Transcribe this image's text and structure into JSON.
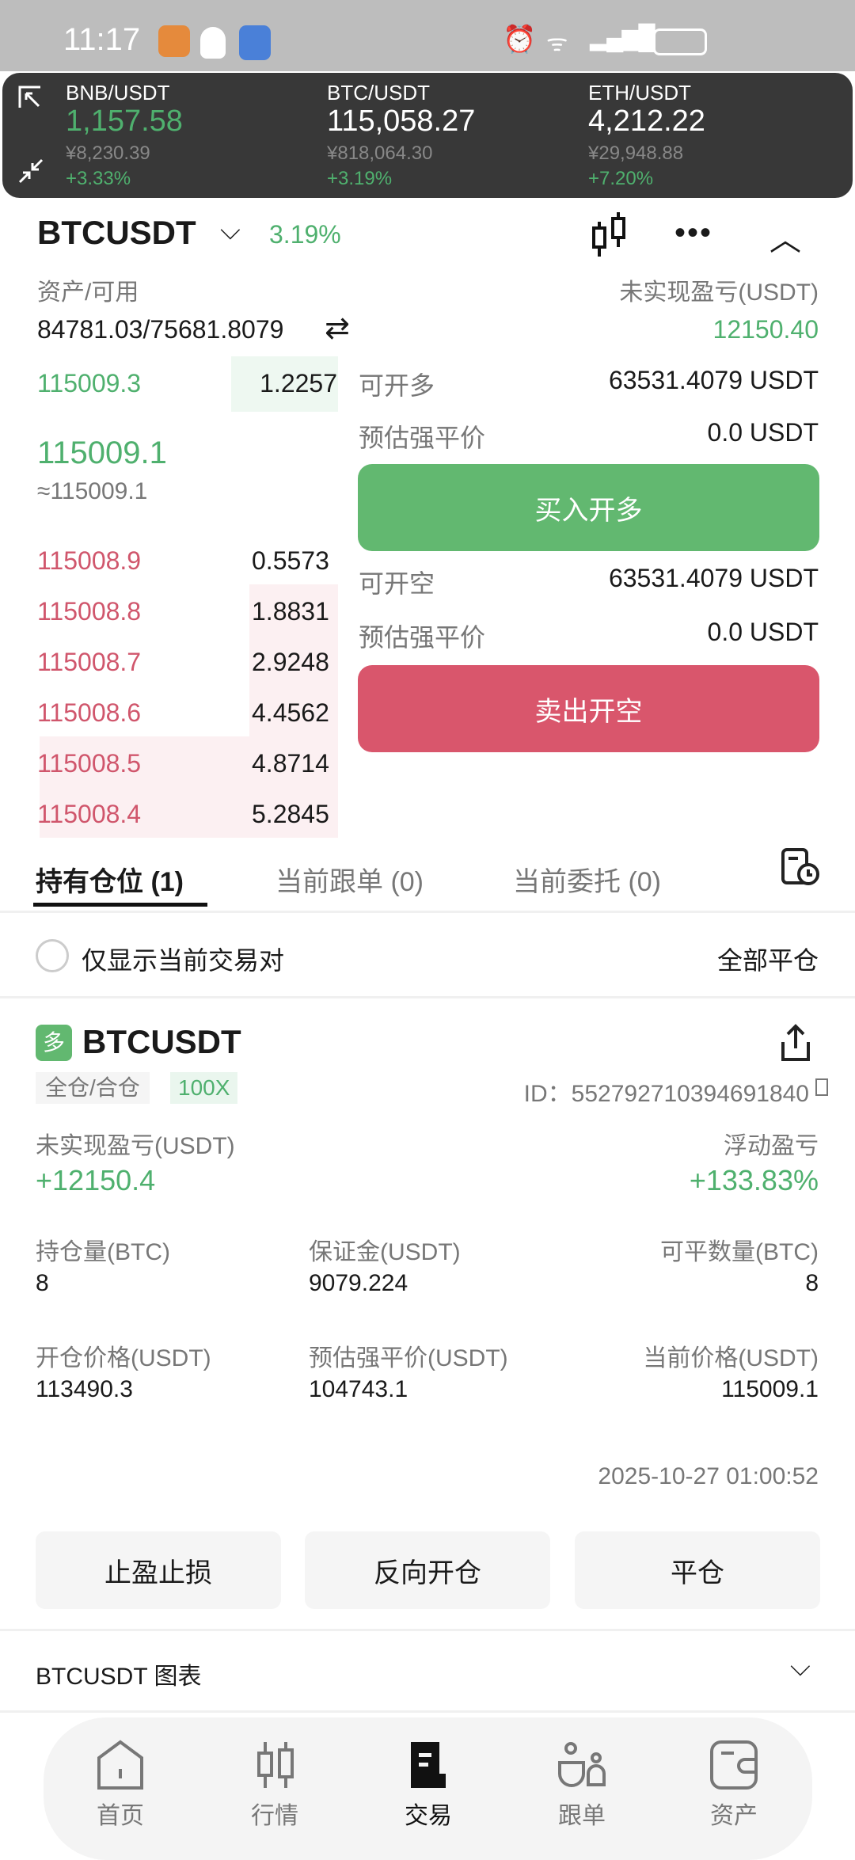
{
  "status_bar": {
    "time": "11:17"
  },
  "header": {
    "symbol": "BTCUSDT",
    "change": "3.19%"
  },
  "account": {
    "assets_label": "资产/可用",
    "assets_value": "84781.03/75681.8079",
    "unrealized_label": "未实现盈亏(USDT)",
    "unrealized_value": "12150.40"
  },
  "order_book": {
    "bids": [
      {
        "price": "115009.3",
        "qty": "1.2257"
      }
    ],
    "last_price": "115009.1",
    "index_price": "≈115009.1",
    "asks": [
      {
        "price": "115008.9",
        "qty": "0.5573"
      },
      {
        "price": "115008.8",
        "qty": "1.8831"
      },
      {
        "price": "115008.7",
        "qty": "2.9248"
      },
      {
        "price": "115008.6",
        "qty": "4.4562"
      },
      {
        "price": "115008.5",
        "qty": "4.8714"
      },
      {
        "price": "115008.4",
        "qty": "5.2845"
      }
    ]
  },
  "trade": {
    "long_avail_label": "可开多",
    "long_avail": "63531.4079 USDT",
    "liq_label": "预估强平价",
    "long_liq": "0.0 USDT",
    "buy_label": "买入开多",
    "short_avail_label": "可开空",
    "short_avail": "63531.4079 USDT",
    "short_liq": "0.0 USDT",
    "sell_label": "卖出开空"
  },
  "tabs": [
    {
      "label": "持有仓位 (1)"
    },
    {
      "label": "当前跟单 (0)"
    },
    {
      "label": "当前委托 (0)"
    }
  ],
  "filter": {
    "only_current": "仅显示当前交易对",
    "close_all": "全部平仓"
  },
  "position": {
    "side": "多",
    "symbol": "BTCUSDT",
    "margin_mode": "全仓/合仓",
    "leverage": "100X",
    "id": "ID：552792710394691840",
    "pnl_label": "未实现盈亏(USDT)",
    "pnl": "+12150.4",
    "float_label": "浮动盈亏",
    "float": "+133.83%",
    "size_label": "持仓量(BTC)",
    "size": "8",
    "margin_label": "保证金(USDT)",
    "margin": "9079.224",
    "closable_label": "可平数量(BTC)",
    "closable": "8",
    "entry_label": "开仓价格(USDT)",
    "entry": "113490.3",
    "liq_label": "预估强平价(USDT)",
    "liq": "104743.1",
    "mark_label": "当前价格(USDT)",
    "mark": "115009.1",
    "time": "2025-10-27 01:00:52",
    "actions": [
      "止盈止损",
      "反向开仓",
      "平仓"
    ]
  },
  "chart_section": {
    "label": "BTCUSDT  图表"
  },
  "overlay": [
    {
      "pair": "BNB/USDT",
      "price": "1,157.58",
      "cny": "¥8,230.39",
      "change": "+3.33%"
    },
    {
      "pair": "BTC/USDT",
      "price": "115,058.27",
      "cny": "¥818,064.30",
      "change": "+3.19%"
    },
    {
      "pair": "ETH/USDT",
      "price": "4,212.22",
      "cny": "¥29,948.88",
      "change": "+7.20%"
    }
  ],
  "nav": [
    {
      "label": "首页"
    },
    {
      "label": "行情"
    },
    {
      "label": "交易"
    },
    {
      "label": "跟单"
    },
    {
      "label": "资产"
    }
  ],
  "colors": {
    "green": "#4fb06e",
    "red": "#d0566c",
    "buy": "#62b870",
    "sell": "#d9566c"
  }
}
